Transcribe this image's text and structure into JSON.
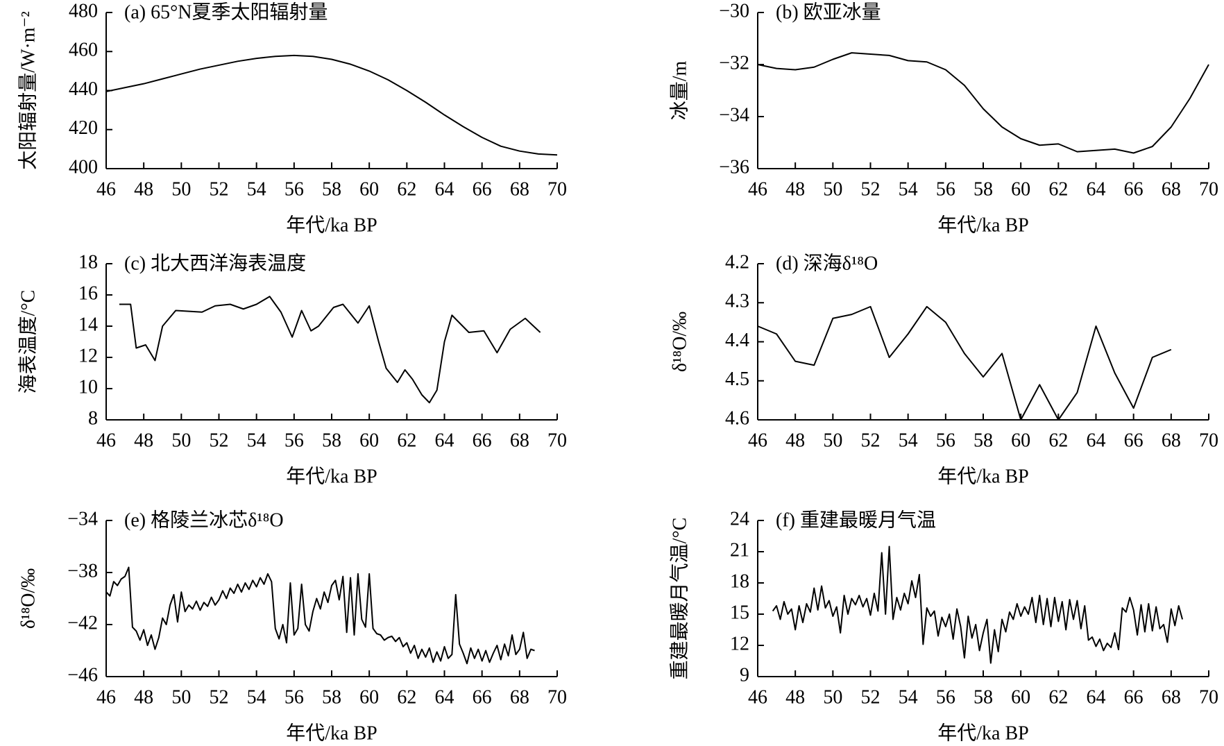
{
  "chart_data": [
    {
      "type": "line",
      "title": "(a) 65°N夏季太阳辐射量",
      "y_label": "太阳辐射量/W·m⁻²",
      "x_label": "年代/ka BP",
      "color": "#000000",
      "x": [
        46,
        47,
        48,
        49,
        50,
        51,
        52,
        53,
        54,
        55,
        56,
        57,
        58,
        59,
        60,
        61,
        62,
        63,
        64,
        65,
        66,
        67,
        68,
        69,
        70
      ],
      "values": [
        439.5,
        441.5,
        443.5,
        446,
        448.5,
        451,
        453,
        455,
        456.5,
        457.5,
        458,
        457.5,
        456,
        453.5,
        450,
        445.5,
        440,
        434,
        427.5,
        421.5,
        416,
        411.5,
        409,
        407.5,
        407
      ],
      "xlim": [
        46,
        70
      ],
      "xticks": [
        46,
        48,
        50,
        52,
        54,
        56,
        58,
        60,
        62,
        64,
        66,
        68,
        70
      ],
      "ylim": [
        400,
        480
      ],
      "yticks": [
        400,
        420,
        440,
        460,
        480
      ]
    },
    {
      "type": "line",
      "title": "(b) 欧亚冰量",
      "y_label": "冰量/m",
      "x_label": "年代/ka BP",
      "color": "#000000",
      "x": [
        46,
        47,
        48,
        49,
        50,
        51,
        52,
        53,
        54,
        55,
        56,
        57,
        58,
        59,
        60,
        61,
        62,
        63,
        64,
        65,
        66,
        67,
        68,
        69,
        70
      ],
      "values": [
        -32.0,
        -32.15,
        -32.2,
        -32.1,
        -31.8,
        -31.55,
        -31.6,
        -31.65,
        -31.85,
        -31.9,
        -32.2,
        -32.8,
        -33.7,
        -34.4,
        -34.85,
        -35.1,
        -35.05,
        -35.35,
        -35.3,
        -35.25,
        -35.4,
        -35.15,
        -34.4,
        -33.3,
        -32.0
      ],
      "xlim": [
        46,
        70
      ],
      "xticks": [
        46,
        48,
        50,
        52,
        54,
        56,
        58,
        60,
        62,
        64,
        66,
        68,
        70
      ],
      "ylim": [
        -36,
        -30
      ],
      "yticks": [
        {
          "value": -36,
          "label": "−36"
        },
        {
          "value": -34,
          "label": "−34"
        },
        {
          "value": -32,
          "label": "−32"
        },
        {
          "value": -30,
          "label": "−30"
        }
      ]
    },
    {
      "type": "line",
      "title": "(c) 北大西洋海表温度",
      "y_label": "海表温度/°C",
      "x_label": "年代/ka BP",
      "color": "#000000",
      "x": [
        46.7,
        47.3,
        47.6,
        48.1,
        48.6,
        49.0,
        49.7,
        51.1,
        51.8,
        52.6,
        53.3,
        54.0,
        54.7,
        55.3,
        55.9,
        56.4,
        56.9,
        57.3,
        58.1,
        58.6,
        59.4,
        60.0,
        60.5,
        60.9,
        61.5,
        61.9,
        62.3,
        62.8,
        63.2,
        63.6,
        64.0,
        64.4,
        65.3,
        66.1,
        66.8,
        67.5,
        68.3,
        69.1
      ],
      "values": [
        15.4,
        15.4,
        12.6,
        12.8,
        11.8,
        14.0,
        15.0,
        14.9,
        15.3,
        15.4,
        15.1,
        15.4,
        15.9,
        14.9,
        13.3,
        15.0,
        13.7,
        14.0,
        15.2,
        15.4,
        14.2,
        15.3,
        13.0,
        11.3,
        10.4,
        11.2,
        10.6,
        9.6,
        9.1,
        9.9,
        13.0,
        14.7,
        13.6,
        13.7,
        12.3,
        13.8,
        14.5,
        13.6
      ],
      "xlim": [
        46,
        70
      ],
      "xticks": [
        46,
        48,
        50,
        52,
        54,
        56,
        58,
        60,
        62,
        64,
        66,
        68,
        70
      ],
      "ylim": [
        8,
        18
      ],
      "yticks": [
        8,
        10,
        12,
        14,
        16,
        18
      ]
    },
    {
      "type": "line",
      "title": "(d) 深海δ¹⁸O",
      "y_label": "δ¹⁸O/‰",
      "x_label": "年代/ka BP",
      "color": "#000000",
      "x": [
        46,
        47,
        48,
        49,
        50,
        51,
        52,
        53,
        54,
        55,
        56,
        57,
        58,
        59,
        60,
        61,
        62,
        63,
        64,
        65,
        66,
        67,
        68
      ],
      "values": [
        4.36,
        4.38,
        4.45,
        4.46,
        4.34,
        4.33,
        4.31,
        4.44,
        4.38,
        4.31,
        4.35,
        4.43,
        4.49,
        4.43,
        4.6,
        4.51,
        4.6,
        4.53,
        4.36,
        4.48,
        4.57,
        4.44,
        4.42
      ],
      "xlim": [
        46,
        70
      ],
      "xticks": [
        46,
        48,
        50,
        52,
        54,
        56,
        58,
        60,
        62,
        64,
        66,
        68,
        70
      ],
      "ylim": [
        4.6,
        4.2
      ],
      "yticks": [
        4.2,
        4.3,
        4.4,
        4.5,
        4.6
      ]
    },
    {
      "type": "line",
      "title": "(e) 格陵兰冰芯δ¹⁸O",
      "y_label": "δ¹⁸O/‰",
      "x_label": "年代/ka BP",
      "color": "#000000",
      "x": [
        46,
        46.2,
        46.4,
        46.6,
        46.8,
        47,
        47.2,
        47.4,
        47.6,
        47.8,
        48,
        48.2,
        48.4,
        48.6,
        48.8,
        49,
        49.2,
        49.4,
        49.6,
        49.8,
        50,
        50.2,
        50.4,
        50.6,
        50.8,
        51,
        51.2,
        51.4,
        51.6,
        51.8,
        52,
        52.2,
        52.4,
        52.6,
        52.8,
        53,
        53.2,
        53.4,
        53.6,
        53.8,
        54,
        54.2,
        54.4,
        54.6,
        54.8,
        55,
        55.2,
        55.4,
        55.6,
        55.8,
        56,
        56.2,
        56.4,
        56.6,
        56.8,
        57,
        57.2,
        57.4,
        57.6,
        57.8,
        58,
        58.2,
        58.4,
        58.6,
        58.8,
        59,
        59.2,
        59.4,
        59.6,
        59.8,
        60,
        60.2,
        60.4,
        60.6,
        60.8,
        61,
        61.2,
        61.4,
        61.6,
        61.8,
        62,
        62.2,
        62.4,
        62.6,
        62.8,
        63,
        63.2,
        63.4,
        63.6,
        63.8,
        64,
        64.2,
        64.4,
        64.6,
        64.8,
        65,
        65.2,
        65.4,
        65.6,
        65.8,
        66,
        66.2,
        66.4,
        66.6,
        66.8,
        67,
        67.2,
        67.4,
        67.6,
        67.8,
        68,
        68.2,
        68.4,
        68.6,
        68.8
      ],
      "values": [
        -39.5,
        -39.8,
        -38.7,
        -39.0,
        -38.5,
        -38.3,
        -37.6,
        -42.2,
        -42.5,
        -43.2,
        -42.4,
        -43.6,
        -42.8,
        -43.9,
        -43.0,
        -41.5,
        -42.0,
        -40.5,
        -39.7,
        -41.8,
        -39.5,
        -41.0,
        -40.5,
        -40.8,
        -40.2,
        -40.9,
        -40.3,
        -40.6,
        -39.9,
        -40.5,
        -40.1,
        -39.4,
        -40.0,
        -39.2,
        -39.6,
        -38.9,
        -39.5,
        -38.8,
        -39.3,
        -38.6,
        -39.1,
        -38.4,
        -38.9,
        -38.1,
        -38.7,
        -42.3,
        -43.1,
        -42.0,
        -43.4,
        -38.8,
        -42.8,
        -42.3,
        -38.9,
        -42.0,
        -42.5,
        -41.0,
        -40.0,
        -40.8,
        -39.5,
        -40.3,
        -39.0,
        -38.6,
        -40.1,
        -38.3,
        -42.6,
        -38.4,
        -42.8,
        -38.1,
        -41.6,
        -42.2,
        -38.1,
        -42.3,
        -42.7,
        -42.8,
        -43.2,
        -43.0,
        -42.9,
        -43.3,
        -43.0,
        -43.7,
        -43.4,
        -44.2,
        -43.6,
        -44.6,
        -43.9,
        -44.5,
        -43.8,
        -44.9,
        -44.1,
        -44.8,
        -43.7,
        -44.6,
        -44.3,
        -39.7,
        -43.5,
        -44.2,
        -45.0,
        -43.8,
        -44.6,
        -43.9,
        -44.8,
        -44.0,
        -44.9,
        -44.2,
        -43.6,
        -44.7,
        -43.5,
        -44.4,
        -42.8,
        -44.3,
        -43.9,
        -42.6,
        -44.6,
        -43.9,
        -44.0
      ],
      "xlim": [
        46,
        70
      ],
      "xticks": [
        46,
        48,
        50,
        52,
        54,
        56,
        58,
        60,
        62,
        64,
        66,
        68,
        70
      ],
      "ylim": [
        -46,
        -34
      ],
      "yticks": [
        {
          "value": -46,
          "label": "−46"
        },
        {
          "value": -42,
          "label": "−42"
        },
        {
          "value": -38,
          "label": "−38"
        },
        {
          "value": -34,
          "label": "−34"
        }
      ]
    },
    {
      "type": "line",
      "title": "(f) 重建最暖月气温",
      "y_label": "重建最暖月气温/°C",
      "x_label": "年代/ka BP",
      "color": "#000000",
      "x": [
        46.8,
        47,
        47.2,
        47.4,
        47.6,
        47.8,
        48,
        48.2,
        48.4,
        48.6,
        48.8,
        49,
        49.2,
        49.4,
        49.6,
        49.8,
        50,
        50.2,
        50.4,
        50.6,
        50.8,
        51,
        51.2,
        51.4,
        51.6,
        51.8,
        52,
        52.2,
        52.4,
        52.6,
        52.8,
        53,
        53.2,
        53.4,
        53.6,
        53.8,
        54,
        54.2,
        54.4,
        54.6,
        54.8,
        55,
        55.2,
        55.4,
        55.6,
        55.8,
        56,
        56.2,
        56.4,
        56.6,
        56.8,
        57,
        57.2,
        57.4,
        57.6,
        57.8,
        58,
        58.2,
        58.4,
        58.6,
        58.8,
        59,
        59.2,
        59.4,
        59.6,
        59.8,
        60,
        60.2,
        60.4,
        60.6,
        60.8,
        61,
        61.2,
        61.4,
        61.6,
        61.8,
        62,
        62.2,
        62.4,
        62.6,
        62.8,
        63,
        63.2,
        63.4,
        63.6,
        63.8,
        64,
        64.2,
        64.4,
        64.6,
        64.8,
        65,
        65.2,
        65.4,
        65.6,
        65.8,
        66,
        66.2,
        66.4,
        66.6,
        66.8,
        67,
        67.2,
        67.4,
        67.6,
        67.8,
        68,
        68.2,
        68.4,
        68.6
      ],
      "values": [
        15.3,
        15.8,
        14.5,
        16.2,
        15.0,
        15.5,
        13.5,
        15.8,
        14.2,
        16.0,
        15.2,
        17.5,
        15.4,
        17.7,
        15.6,
        16.3,
        14.8,
        15.7,
        13.2,
        16.8,
        15.0,
        16.5,
        15.9,
        16.8,
        15.7,
        16.5,
        14.9,
        17.0,
        15.3,
        20.9,
        15.0,
        21.5,
        14.5,
        16.6,
        15.4,
        17.0,
        16.0,
        18.2,
        16.6,
        18.8,
        12.1,
        15.6,
        14.8,
        15.3,
        12.9,
        14.7,
        13.8,
        15.0,
        12.6,
        15.5,
        13.8,
        10.8,
        14.8,
        12.7,
        14.0,
        11.5,
        13.2,
        14.5,
        10.3,
        13.5,
        11.4,
        14.5,
        13.3,
        15.2,
        14.5,
        16.0,
        14.8,
        15.7,
        15.0,
        16.6,
        14.2,
        16.8,
        14.0,
        16.5,
        13.8,
        16.6,
        14.3,
        16.2,
        13.5,
        16.4,
        14.5,
        16.3,
        13.6,
        15.8,
        12.5,
        12.8,
        11.9,
        12.6,
        11.5,
        12.2,
        11.8,
        13.2,
        11.6,
        15.6,
        15.2,
        16.6,
        15.4,
        13.0,
        15.9,
        13.3,
        16.0,
        13.4,
        15.7,
        13.6,
        14.0,
        12.3,
        15.5,
        13.9,
        15.8,
        14.5
      ],
      "xlim": [
        46,
        70
      ],
      "xticks": [
        46,
        48,
        50,
        52,
        54,
        56,
        58,
        60,
        62,
        64,
        66,
        68,
        70
      ],
      "ylim": [
        9,
        24
      ],
      "yticks": [
        9,
        12,
        15,
        18,
        21,
        24
      ]
    }
  ]
}
